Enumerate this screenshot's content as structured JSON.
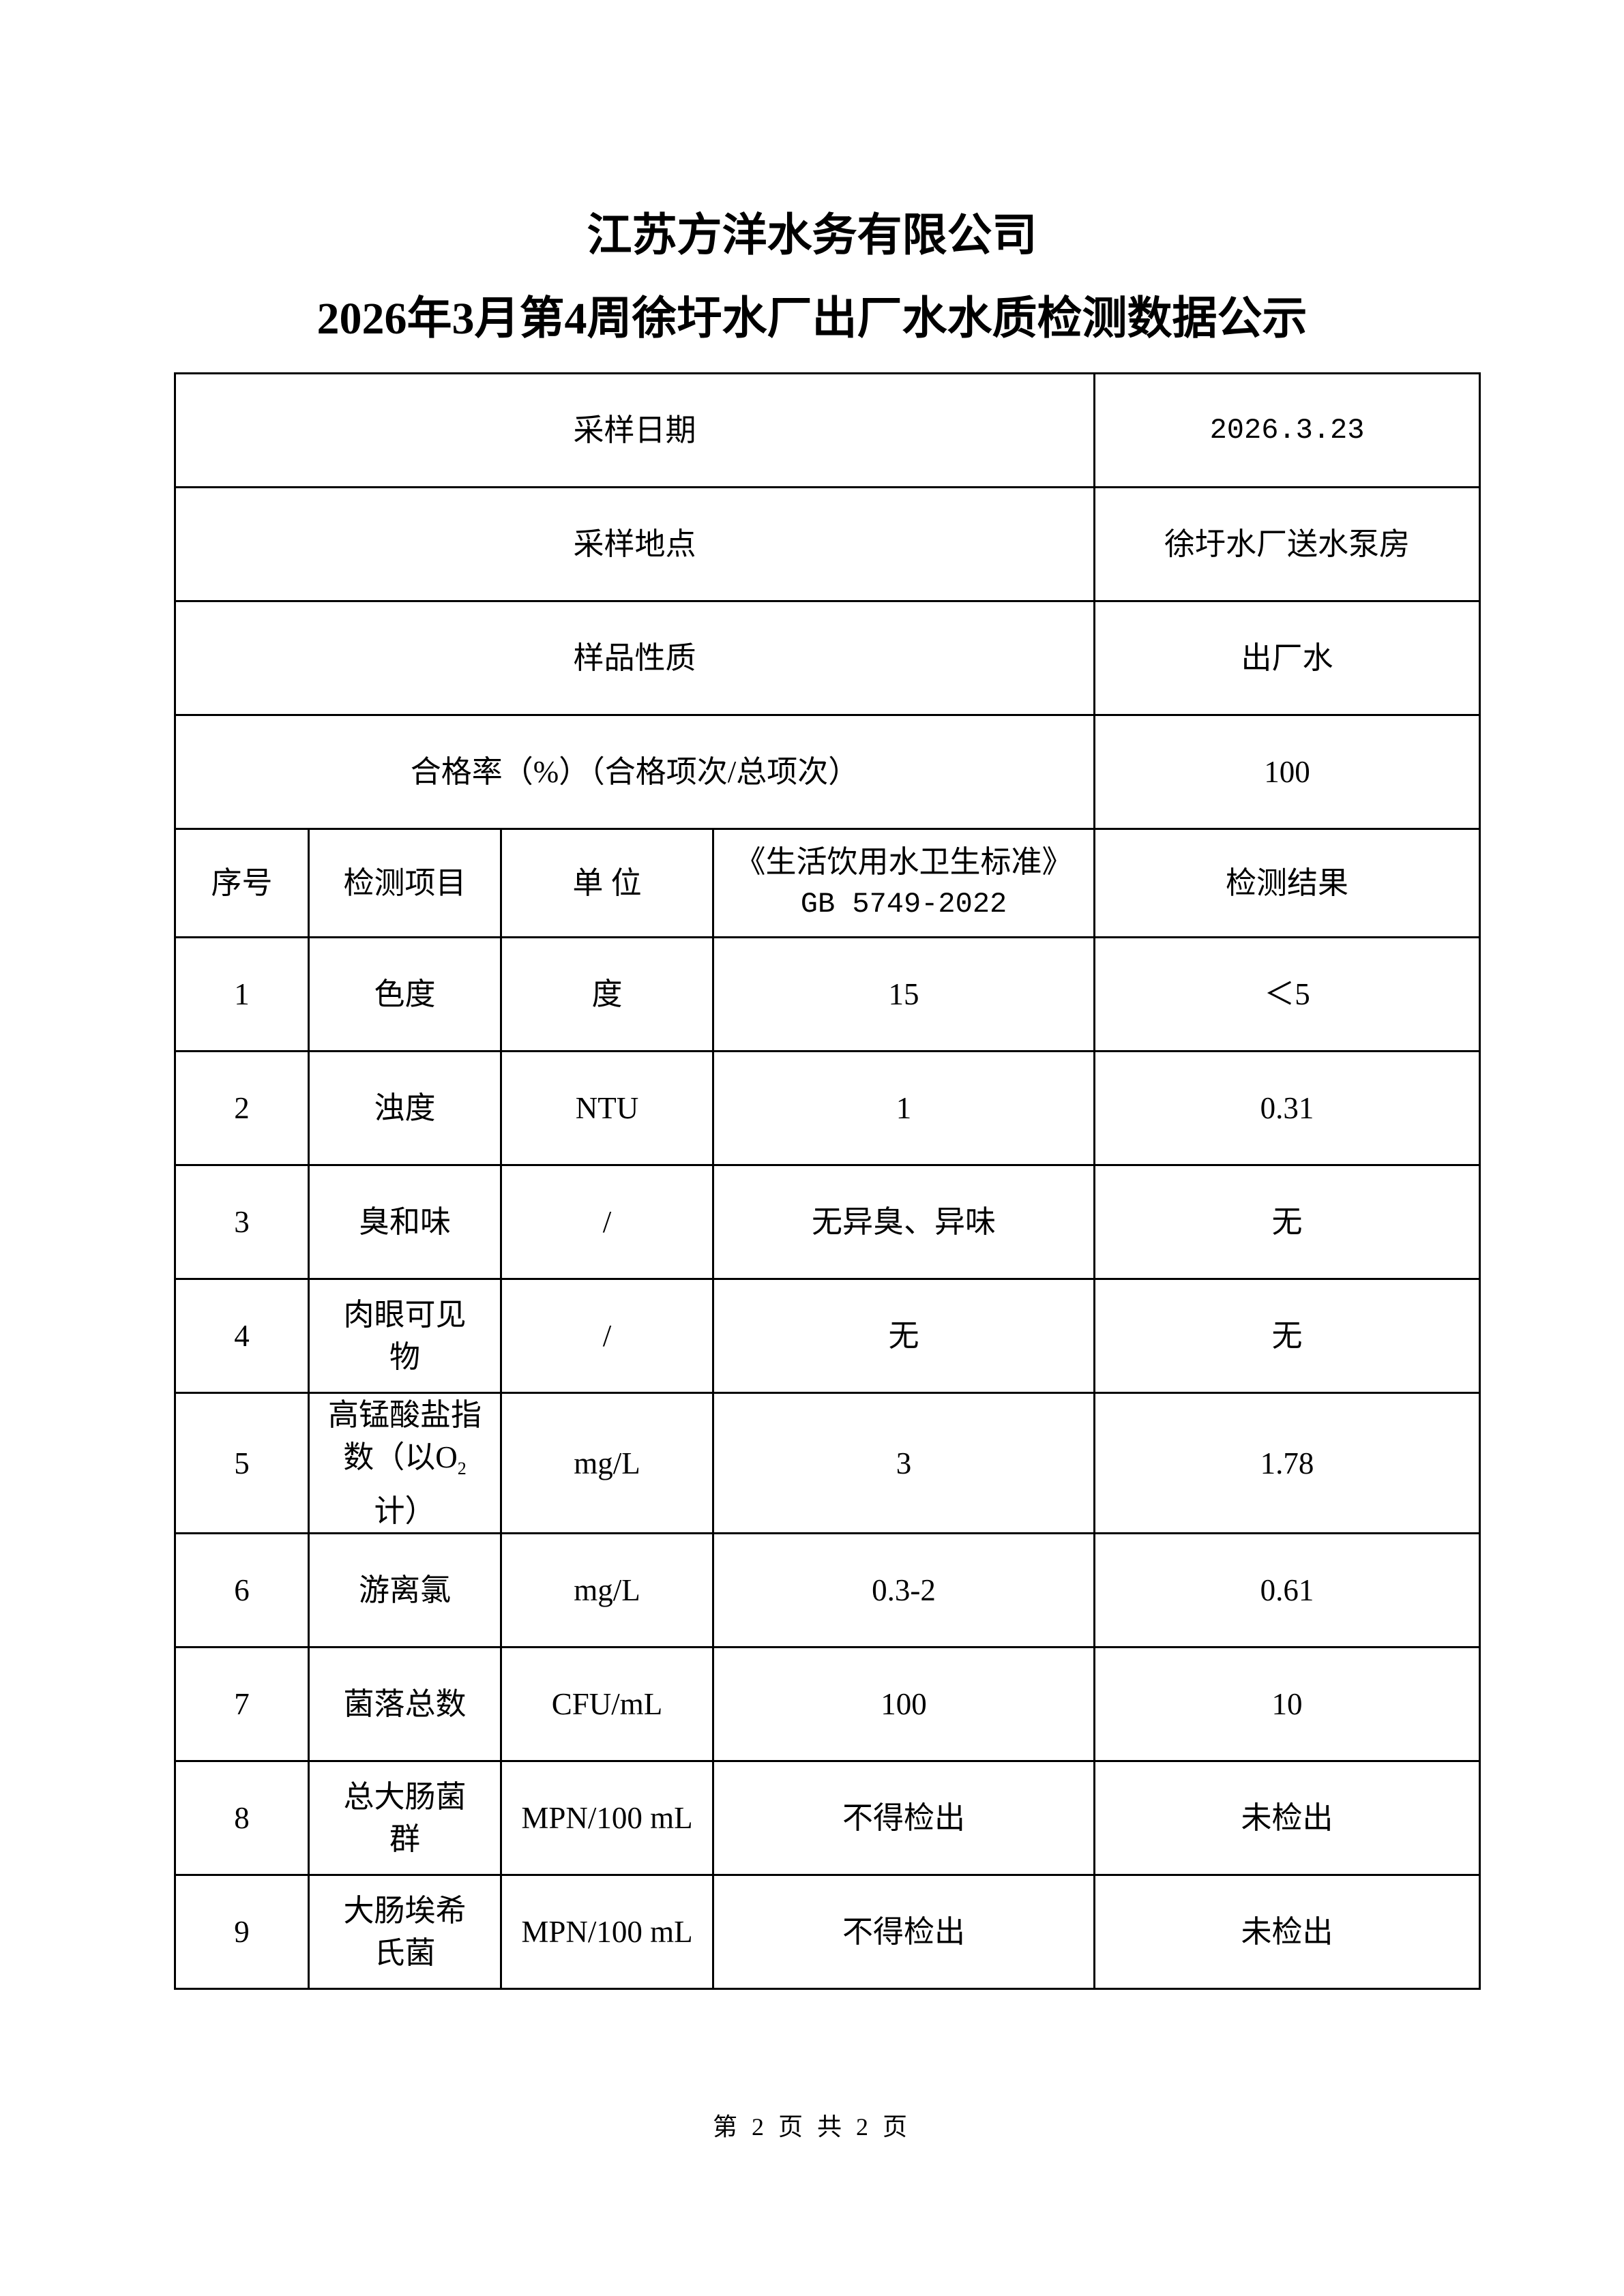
{
  "title": {
    "company": "江苏方洋水务有限公司",
    "report": "2026年3月第4周徐圩水厂出厂水水质检测数据公示"
  },
  "info": {
    "sampling_date_label": "采样日期",
    "sampling_date": "2026.3.23",
    "sampling_site_label": "采样地点",
    "sampling_site": "徐圩水厂送水泵房",
    "sample_type_label": "样品性质",
    "sample_type": "出厂水",
    "pass_rate_label": "合格率（%）（合格项次/总项次）",
    "pass_rate": "100"
  },
  "table": {
    "headers": {
      "no": "序号",
      "item": "检测项目",
      "unit": "单 位",
      "standard_line1": "《生活饮用水卫生标准》",
      "standard_line2": "GB 5749-2022",
      "result": "检测结果"
    },
    "rows": [
      {
        "no": "1",
        "item": "色度",
        "unit": "度",
        "standard": "15",
        "result": "＜5"
      },
      {
        "no": "2",
        "item": "浊度",
        "unit": "NTU",
        "standard": "1",
        "result": "0.31"
      },
      {
        "no": "3",
        "item": "臭和味",
        "unit": "/",
        "standard": "无异臭、异味",
        "result": "无"
      },
      {
        "no": "4",
        "item": "肉眼可见物",
        "unit": "/",
        "standard": "无",
        "result": "无"
      },
      {
        "no": "5",
        "item_a": "高锰酸盐指数（以O",
        "item_sub": "2",
        "item_b": "计）",
        "unit": "mg/L",
        "standard": "3",
        "result": "1.78"
      },
      {
        "no": "6",
        "item": "游离氯",
        "unit": "mg/L",
        "standard": "0.3-2",
        "result": "0.61"
      },
      {
        "no": "7",
        "item": "菌落总数",
        "unit": "CFU/mL",
        "standard": "100",
        "result": "10"
      },
      {
        "no": "8",
        "item": "总大肠菌群",
        "unit": "MPN/100 mL",
        "standard": "不得检出",
        "result": "未检出"
      },
      {
        "no": "9",
        "item": "大肠埃希氏菌",
        "unit": "MPN/100 mL",
        "standard": "不得检出",
        "result": "未检出"
      }
    ]
  },
  "footer": {
    "page": "第 2 页 共 2 页"
  }
}
